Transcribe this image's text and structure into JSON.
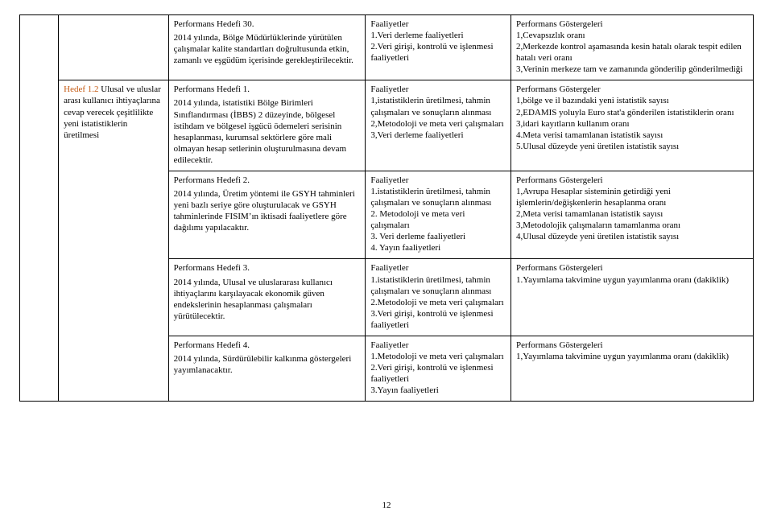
{
  "page_number": "12",
  "colors": {
    "text": "#000000",
    "accent": "#c45911",
    "border": "#000000",
    "background": "#ffffff"
  },
  "hedef": {
    "title": "Hedef 1.2 ",
    "body": "Ulusal ve uluslar arası kullanıcı ihtiyaçlarına cevap verecek çeşitlilikte yeni istatistiklerin üretilmesi"
  },
  "rows": [
    {
      "ph_title": "Performans Hedefi 30.",
      "ph_body": "2014 yılında, Bölge Müdürlüklerinde yürütülen çalışmalar kalite standartları doğrultusunda etkin, zamanlı ve eşgüdüm içerisinde gerekleştirilecektir.",
      "fa_title": "Faaliyetler",
      "fa_body": "1.Veri derleme faaliyetleri\n2.Veri girişi, kontrolü ve işlenmesi faaliyetleri",
      "pg_title": "Performans Göstergeleri",
      "pg_body": "1,Cevapsızlık oranı\n2,Merkezde kontrol aşamasında kesin hatalı olarak tespit edilen hatalı veri oranı\n3,Verinin merkeze tam ve zamanında gönderilip gönderilmediği"
    },
    {
      "ph_title": "Performans Hedefi 1.",
      "ph_body": "2014 yılında, istatistiki Bölge Birimleri Sınıflandırması (İBBS) 2 düzeyinde, bölgesel istihdam ve bölgesel işgücü ödemeleri serisinin hesaplanması, kurumsal sektörlere göre mali olmayan hesap setlerinin oluşturulmasına devam edilecektir.",
      "fa_title": "Faaliyetler",
      "fa_body": "1,istatistiklerin üretilmesi, tahmin çalışmaları ve sonuçların alınması\n2,Metodoloji ve meta veri çalışmaları\n3,Veri derleme faaliyetleri",
      "pg_title": "Performans Göstergeler",
      "pg_body": "1,bölge ve il bazındaki yeni istatistik sayısı\n2,EDAMIS yoluyla Euro stat'a gönderilen istatistiklerin oranı\n3,idari kayıtların kullanım oranı\n4.Meta verisi tamamlanan istatistik sayısı\n5.Ulusal düzeyde yeni üretilen istatistik sayısı"
    },
    {
      "ph_title": "Performans Hedefi 2.",
      "ph_body": "2014 yılında, Üretim yöntemi ile GSYH tahminleri yeni bazlı seriye göre oluşturulacak ve GSYH tahminlerinde FISIM’ın iktisadi faaliyetlere göre dağılımı yapılacaktır.",
      "fa_title": "Faaliyetler",
      "fa_body": "1.istatistiklerin üretilmesi, tahmin çalışmaları ve sonuçların alınması\n2. Metodoloji ve meta veri çalışmaları\n3. Veri derleme faaliyetleri\n4. Yayın faaliyetleri",
      "pg_title": "Performans Göstergeleri",
      "pg_body": "1,Avrupa Hesaplar sisteminin getirdiği yeni işlemlerin/değişkenlerin hesaplanma oranı\n2,Meta verisi tamamlanan istatistik sayısı\n3,Metodolojik çalışmaların tamamlanma oranı\n4,Ulusal düzeyde yeni üretilen istatistik sayısı"
    },
    {
      "ph_title": "Performans Hedefi 3.",
      "ph_body": "2014 yılında, Ulusal ve uluslararası kullanıcı ihtiyaçlarını karşılayacak ekonomik güven endekslerinin hesaplanması çalışmaları yürütülecektir.",
      "fa_title": "Faaliyetler",
      "fa_body": "1.istatistiklerin üretilmesi, tahmin çalışmaları ve sonuçların alınması\n2.Metodoloji ve meta veri çalışmaları\n3.Veri girişi, kontrolü ve işlenmesi faaliyetleri",
      "pg_title": "Performans Göstergeleri",
      "pg_body": "1.Yayımlama takvimine uygun yayımlanma oranı (dakiklik)"
    },
    {
      "ph_title": "Performans Hedefi 4.",
      "ph_body": "2014 yılında, Sürdürülebilir kalkınma göstergeleri yayımlanacaktır.",
      "fa_title": "Faaliyetler",
      "fa_body": "1.Metodoloji ve meta veri çalışmaları\n2.Veri girişi, kontrolü ve işlenmesi faaliyetleri\n3.Yayın faaliyetleri",
      "pg_title": "Performans Göstergeleri",
      "pg_body": "1,Yayımlama takvimine uygun yayımlanma oranı (dakiklik)"
    }
  ]
}
